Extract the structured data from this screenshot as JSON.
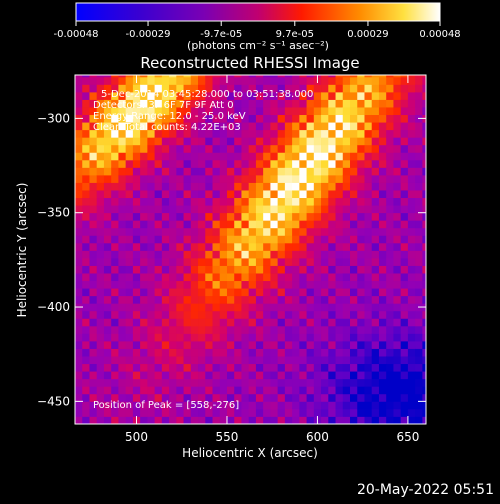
{
  "chart_data": {
    "type": "heatmap",
    "title": "Reconstructed RHESSI Image",
    "xlabel": "Heliocentric X (arcsec)",
    "ylabel": "Heliocentric Y (arcsec)",
    "xlim": [
      466,
      660
    ],
    "ylim": [
      -462,
      -277
    ],
    "x_ticks": [
      500,
      550,
      600,
      650
    ],
    "y_ticks": [
      -300,
      -350,
      -400,
      -450
    ],
    "colormap": [
      "#0000c8",
      "#5a00c8",
      "#9600b4",
      "#d2006e",
      "#ff2800",
      "#ff8c00",
      "#ffdc32",
      "#ffffff"
    ],
    "colorbar": {
      "ticks": [
        "-0.00048",
        "-0.00029",
        "-9.7e-05",
        "9.7e-05",
        "0.00029",
        "0.00048"
      ],
      "range": [
        -0.00048,
        0.00048
      ],
      "unit_label": "(photons cm⁻² s⁻¹ asec⁻²)"
    },
    "annotations": [
      "5-Dec-2014 03:45:28.000 to 03:51:38.000",
      "Detectors: 3F 6F 7F 9F  Att 0",
      "Energy Range: 12.0 - 25.0 keV",
      "Clean    Total counts: 4.22E+03"
    ],
    "peak_label": "Position of Peak = [558,-276]",
    "peak": [
      558,
      -276
    ]
  },
  "footer": {
    "timestamp": "20-May-2022 05:51"
  }
}
